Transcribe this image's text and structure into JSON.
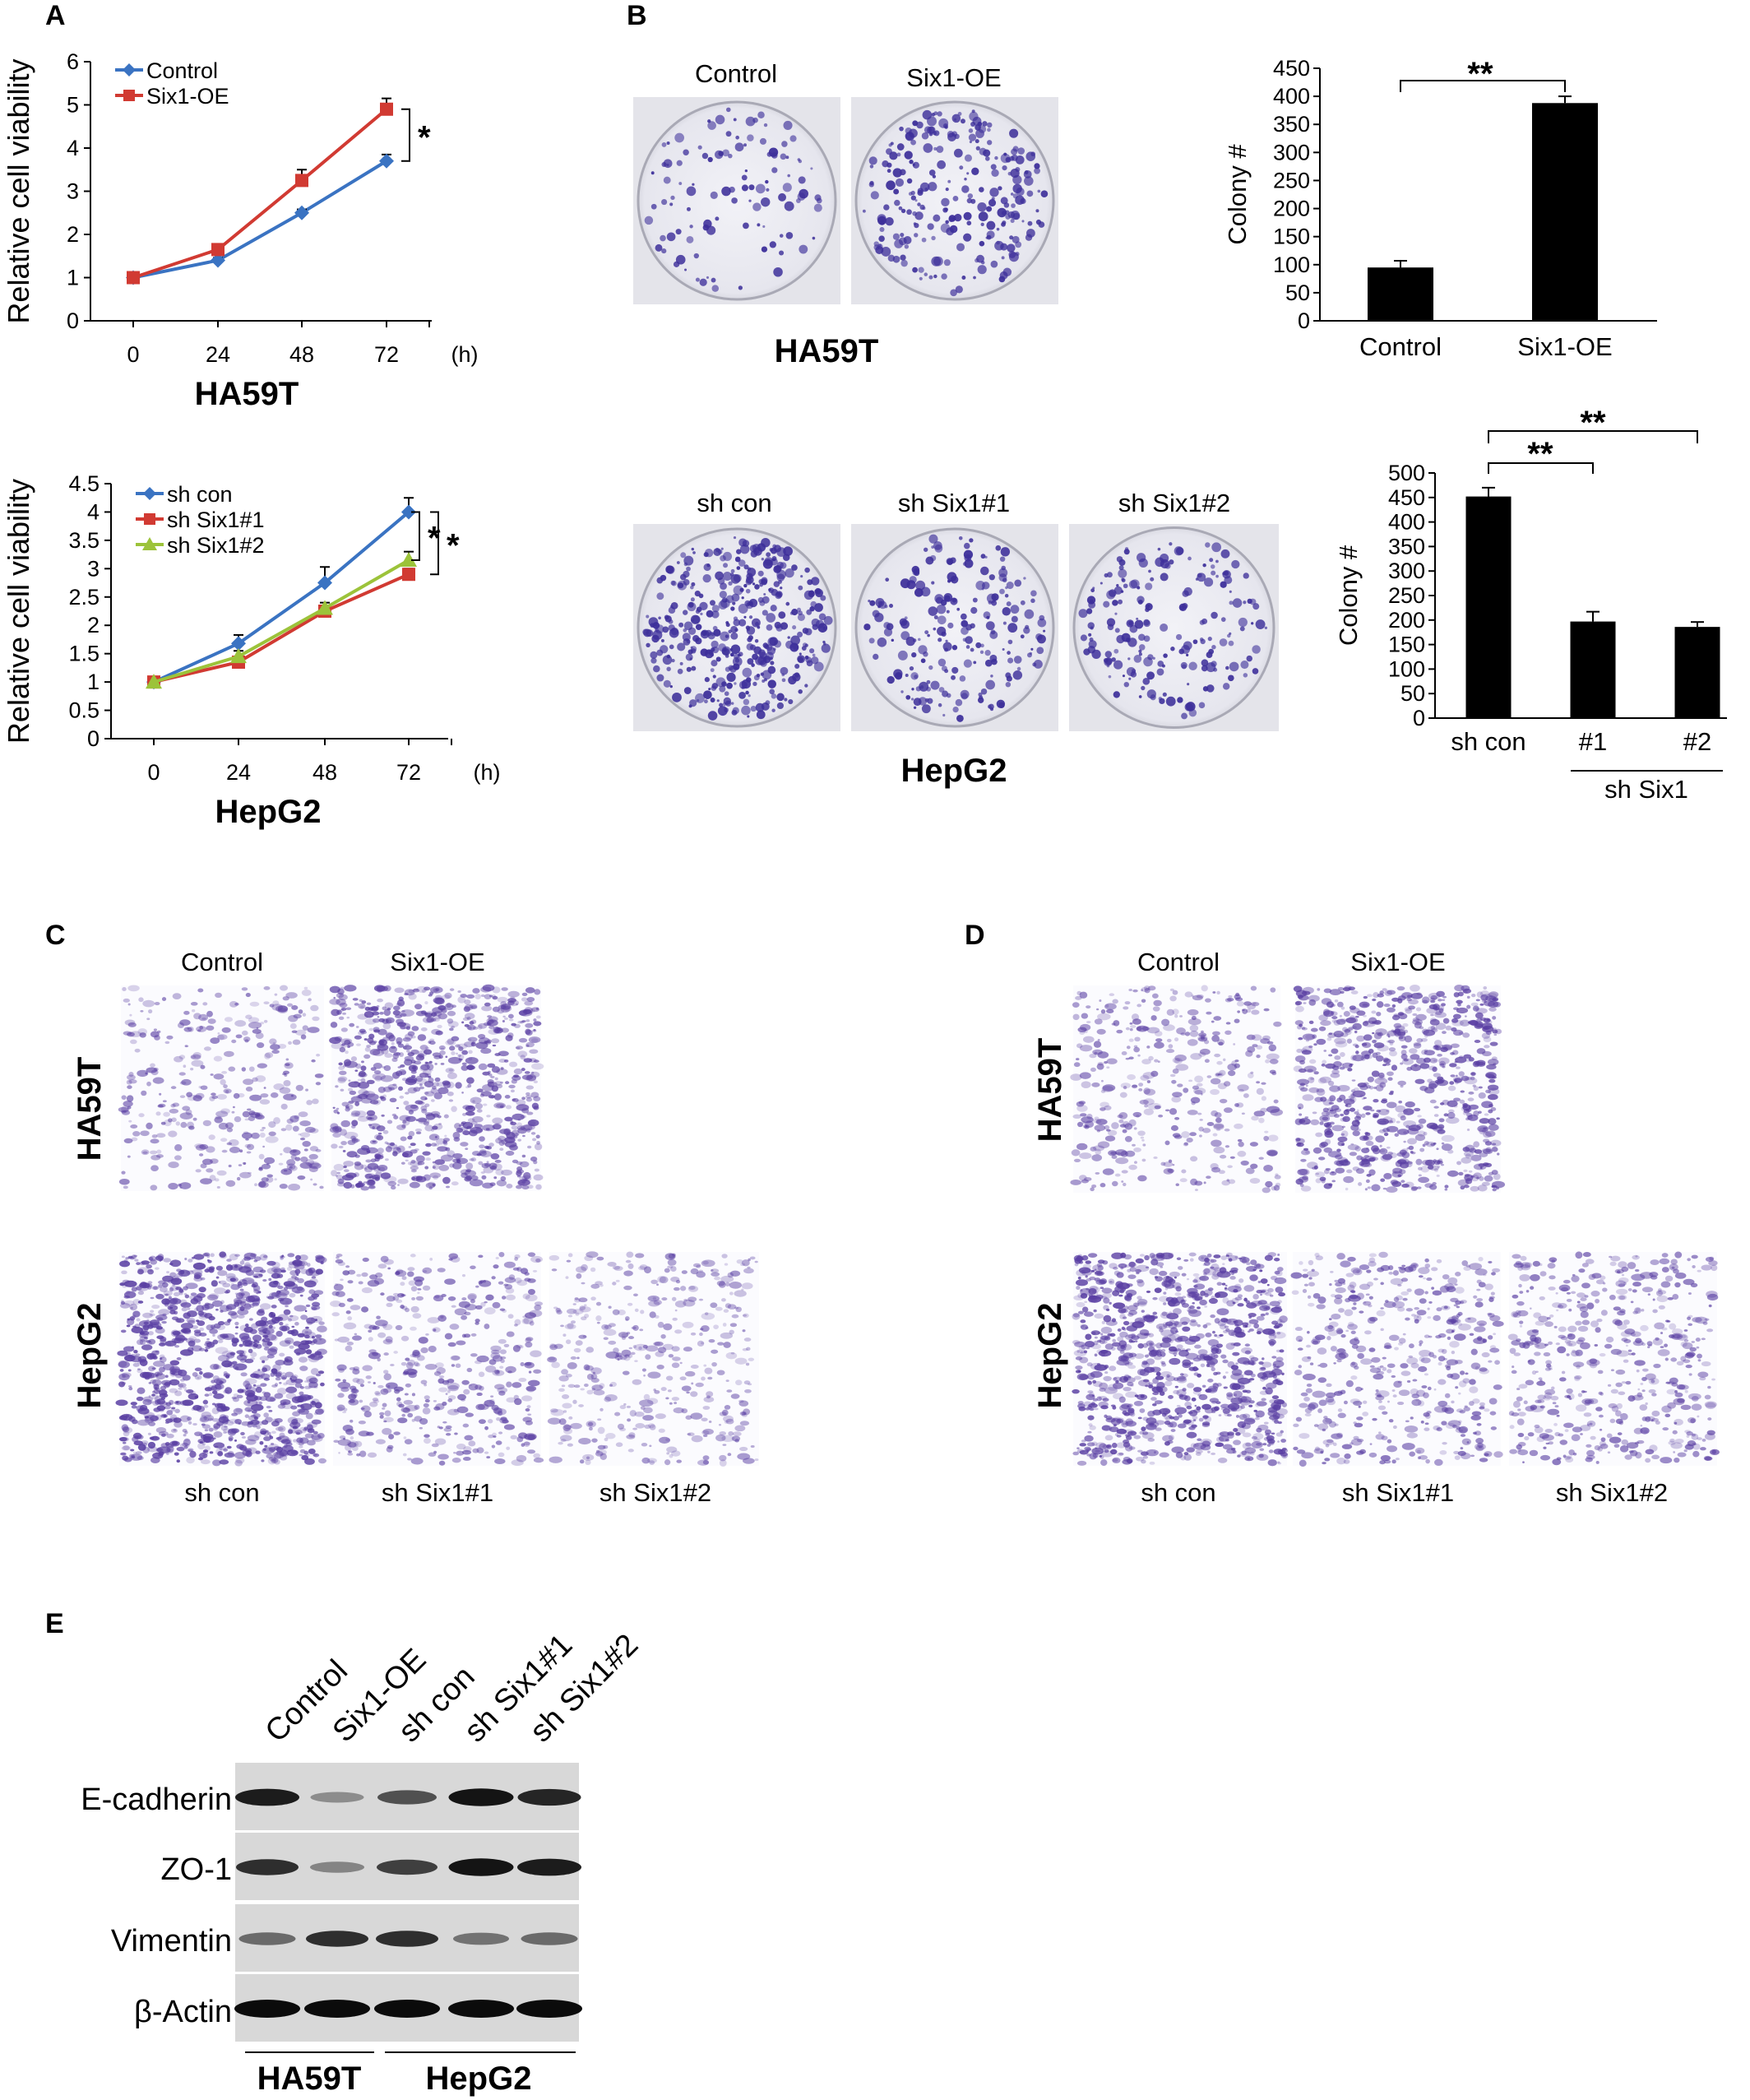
{
  "panels": {
    "A": "A",
    "B": "B",
    "C": "C",
    "D": "D",
    "E": "E"
  },
  "chart_data": [
    {
      "id": "viab-ha59t",
      "type": "line",
      "title": "HA59T",
      "ylabel": "Relative cell viability",
      "x": [
        0,
        24,
        48,
        72
      ],
      "x_ticks": [
        "0",
        "24",
        "48",
        "72"
      ],
      "x_unit": "(h)",
      "ylim": [
        0,
        6
      ],
      "y_ticks": [
        "0",
        "1",
        "2",
        "3",
        "4",
        "5",
        "6"
      ],
      "series": [
        {
          "name": "Control",
          "color": "#3a73c2",
          "marker": "diamond",
          "values": [
            1.0,
            1.4,
            2.5,
            3.7
          ],
          "errors": [
            0,
            0.06,
            0.08,
            0.15
          ]
        },
        {
          "name": "Six1-OE",
          "color": "#d13a32",
          "marker": "square",
          "values": [
            1.0,
            1.65,
            3.25,
            4.9
          ],
          "errors": [
            0,
            0.12,
            0.25,
            0.25
          ]
        }
      ],
      "significance": [
        "*"
      ]
    },
    {
      "id": "viab-hepg2",
      "type": "line",
      "title": "HepG2",
      "ylabel": "Relative cell viability",
      "x": [
        0,
        24,
        48,
        72
      ],
      "x_ticks": [
        "0",
        "24",
        "48",
        "72"
      ],
      "x_unit": "(h)",
      "ylim": [
        0,
        4.5
      ],
      "y_ticks": [
        "0",
        "0.5",
        "1",
        "1.5",
        "2",
        "2.5",
        "3",
        "3.5",
        "4",
        "4.5"
      ],
      "series": [
        {
          "name": "sh con",
          "color": "#3a73c2",
          "marker": "diamond",
          "values": [
            1.0,
            1.68,
            2.75,
            4.0
          ],
          "errors": [
            0,
            0.15,
            0.28,
            0.25
          ]
        },
        {
          "name": "sh Six1#1",
          "color": "#d13a32",
          "marker": "square",
          "values": [
            1.0,
            1.35,
            2.25,
            2.9
          ],
          "errors": [
            0,
            0.06,
            0.08,
            0.1
          ]
        },
        {
          "name": "sh Six1#2",
          "color": "#9cc33a",
          "marker": "triangle",
          "values": [
            1.0,
            1.45,
            2.3,
            3.15
          ],
          "errors": [
            0,
            0.1,
            0.1,
            0.15
          ]
        }
      ],
      "significance": [
        "*",
        "*"
      ]
    },
    {
      "id": "colony-ha59t",
      "type": "bar",
      "ylabel": "Colony #",
      "categories": [
        "Control",
        "Six1-OE"
      ],
      "values": [
        95,
        388
      ],
      "errors": [
        12,
        12
      ],
      "ylim": [
        0,
        450
      ],
      "y_ticks": [
        "0",
        "50",
        "100",
        "150",
        "200",
        "250",
        "300",
        "350",
        "400",
        "450"
      ],
      "color": "#000000",
      "significance": [
        "**"
      ]
    },
    {
      "id": "colony-hepg2",
      "type": "bar",
      "ylabel": "Colony #",
      "categories": [
        "sh con",
        "#1",
        "#2"
      ],
      "group_label": "sh Six1",
      "values": [
        452,
        197,
        186
      ],
      "errors": [
        18,
        20,
        10
      ],
      "ylim": [
        0,
        500
      ],
      "y_ticks": [
        "0",
        "50",
        "100",
        "150",
        "200",
        "250",
        "300",
        "350",
        "400",
        "450",
        "500"
      ],
      "color": "#000000",
      "significance": [
        "**",
        "**"
      ]
    }
  ],
  "panel_b": {
    "ha59t_labels": [
      "Control",
      "Six1-OE"
    ],
    "ha59t_title": "HA59T",
    "hepg2_labels": [
      "sh con",
      "sh Six1#1",
      "sh Six1#2"
    ],
    "hepg2_title": "HepG2"
  },
  "panel_c": {
    "top_labels": [
      "Control",
      "Six1-OE"
    ],
    "row_labels": [
      "HA59T",
      "HepG2"
    ],
    "bottom_labels": [
      "sh con",
      "sh Six1#1",
      "sh Six1#2"
    ]
  },
  "panel_d": {
    "top_labels": [
      "Control",
      "Six1-OE"
    ],
    "row_labels": [
      "HA59T",
      "HepG2"
    ],
    "bottom_labels": [
      "sh con",
      "sh Six1#1",
      "sh Six1#2"
    ]
  },
  "panel_e": {
    "lanes": [
      "Control",
      "Six1-OE",
      "sh con",
      "sh Six1#1",
      "sh Six1#2"
    ],
    "proteins": [
      "E-cadherin",
      "ZO-1",
      "Vimentin",
      "β-Actin"
    ],
    "band_intensity": [
      [
        0.9,
        0.25,
        0.6,
        0.95,
        0.85
      ],
      [
        0.8,
        0.3,
        0.7,
        0.95,
        0.9
      ],
      [
        0.45,
        0.8,
        0.8,
        0.4,
        0.45
      ],
      [
        1.0,
        1.0,
        1.0,
        1.0,
        1.0
      ]
    ],
    "groups": [
      "HA59T",
      "HepG2"
    ]
  }
}
